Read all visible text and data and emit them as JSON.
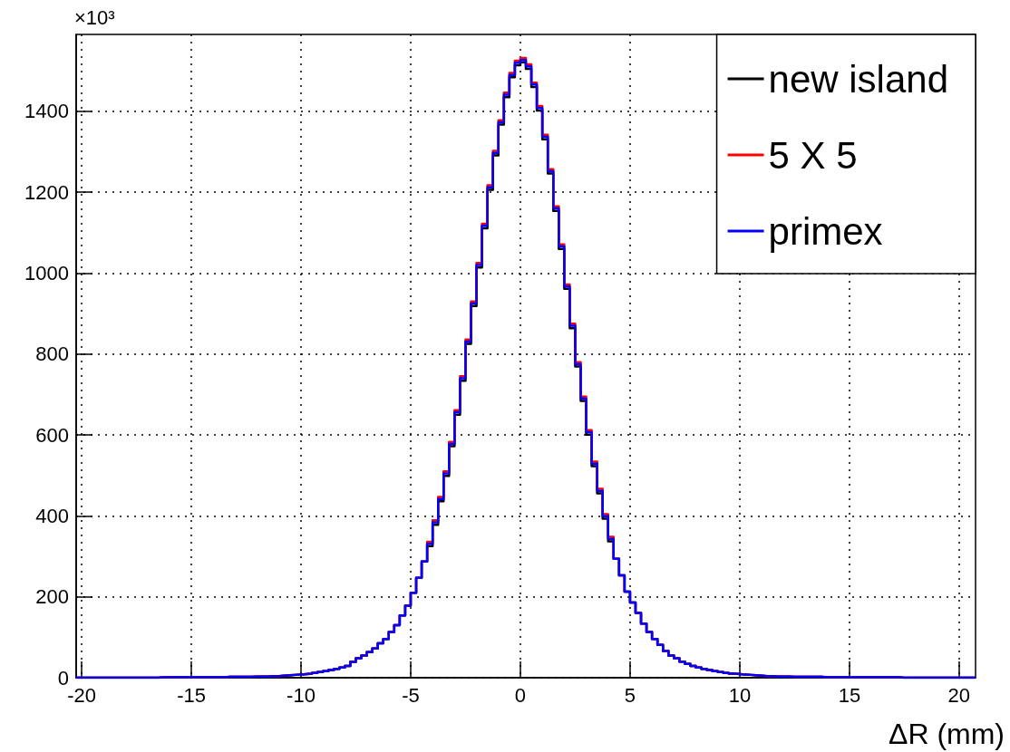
{
  "chart_data": {
    "type": "histogram",
    "xlabel": "ΔR (mm)",
    "annotations": [
      "×10³"
    ],
    "bins": [
      -20.25,
      -20,
      -19.75,
      -19.5,
      -19.25,
      -19,
      -18.75,
      -18.5,
      -18.25,
      -18,
      -17.75,
      -17.5,
      -17.25,
      -17,
      -16.75,
      -16.5,
      -16.25,
      -16,
      -15.75,
      -15.5,
      -15.25,
      -15,
      -14.75,
      -14.5,
      -14.25,
      -14,
      -13.75,
      -13.5,
      -13.25,
      -13,
      -12.75,
      -12.5,
      -12.25,
      -12,
      -11.75,
      -11.5,
      -11.25,
      -11,
      -10.75,
      -10.5,
      -10.25,
      -10,
      -9.75,
      -9.5,
      -9.25,
      -9,
      -8.75,
      -8.5,
      -8.25,
      -8,
      -7.75,
      -7.5,
      -7.25,
      -7,
      -6.75,
      -6.5,
      -6.25,
      -6,
      -5.75,
      -5.5,
      -5.25,
      -5,
      -4.75,
      -4.5,
      -4.25,
      -4,
      -3.75,
      -3.5,
      -3.25,
      -3,
      -2.75,
      -2.5,
      -2.25,
      -2,
      -1.75,
      -1.5,
      -1.25,
      -1,
      -0.75,
      -0.5,
      -0.25,
      0,
      0.25,
      0.5,
      0.75,
      1,
      1.25,
      1.5,
      1.75,
      2,
      2.25,
      2.5,
      2.75,
      3,
      3.25,
      3.5,
      3.75,
      4,
      4.25,
      4.5,
      4.75,
      5,
      5.25,
      5.5,
      5.75,
      6,
      6.25,
      6.5,
      6.75,
      7,
      7.25,
      7.5,
      7.75,
      8,
      8.25,
      8.5,
      8.75,
      9,
      9.25,
      9.5,
      9.75,
      10,
      10.25,
      10.5,
      10.75,
      11,
      11.25,
      11.5,
      11.75,
      12,
      12.25,
      12.5,
      12.75,
      13,
      13.25,
      13.5,
      13.75,
      14,
      14.25,
      14.5,
      14.75,
      15,
      15.25,
      15.5,
      15.75,
      16,
      16.25,
      16.5,
      16.75,
      17,
      17.25,
      17.5,
      17.75,
      18,
      18.25,
      18.5,
      18.75,
      19,
      19.25,
      19.5,
      19.75,
      20,
      20.25,
      20.5,
      20.75
    ],
    "series": [
      {
        "name": "new island",
        "color": "#000000",
        "values": [
          0,
          0,
          0,
          0,
          0,
          0,
          0,
          0,
          0,
          0,
          0,
          0,
          0,
          0,
          0,
          1,
          1,
          1,
          1,
          1,
          1,
          1,
          1,
          1,
          1,
          1,
          1,
          2,
          2,
          2,
          2,
          2,
          3,
          3,
          3,
          4,
          4,
          5,
          6,
          7,
          8,
          9,
          10,
          12,
          14,
          16,
          19,
          22,
          25,
          29,
          39,
          48,
          55,
          63,
          72,
          85,
          96,
          113,
          130,
          154,
          178,
          210,
          247,
          287,
          325,
          378,
          436,
          499,
          572,
          650,
          734,
          825,
          919,
          1014,
          1111,
          1206,
          1291,
          1367,
          1435,
          1484,
          1514,
          1521,
          1505,
          1460,
          1402,
          1331,
          1246,
          1154,
          1060,
          961,
          864,
          769,
          684,
          601,
          523,
          456,
          393,
          337,
          294,
          253,
          213,
          186,
          160,
          134,
          113,
          96,
          81,
          66,
          55,
          48,
          40,
          34,
          29,
          25,
          22,
          19,
          16,
          14,
          12,
          10,
          9,
          8,
          7,
          6,
          5,
          4,
          4,
          3,
          3,
          3,
          2,
          2,
          2,
          2,
          2,
          2,
          1,
          1,
          1,
          1,
          1,
          1,
          1,
          1,
          1,
          1,
          1,
          1,
          1,
          1,
          0,
          0,
          0,
          0,
          0,
          0,
          0,
          0,
          0,
          0,
          0,
          0,
          0,
          0
        ]
      },
      {
        "name": "5 X 5",
        "color": "#ff0000",
        "values": [
          0,
          0,
          0,
          0,
          0,
          0,
          0,
          0,
          0,
          0,
          0,
          0,
          0,
          0,
          0,
          1,
          1,
          1,
          1,
          1,
          1,
          1,
          1,
          1,
          1,
          1,
          1,
          2,
          2,
          2,
          2,
          2,
          3,
          3,
          3,
          4,
          4,
          5,
          6,
          7,
          8,
          9,
          10,
          12,
          14,
          16,
          19,
          22,
          25,
          29,
          39,
          48,
          55,
          63,
          72,
          85,
          96,
          113,
          130,
          154,
          178,
          210,
          247,
          287,
          336,
          389,
          447,
          510,
          583,
          661,
          745,
          836,
          930,
          1025,
          1122,
          1217,
          1302,
          1378,
          1446,
          1495,
          1525,
          1532,
          1516,
          1471,
          1413,
          1342,
          1257,
          1165,
          1071,
          972,
          875,
          780,
          695,
          612,
          534,
          467,
          404,
          348,
          294,
          253,
          213,
          186,
          160,
          134,
          113,
          96,
          81,
          66,
          55,
          48,
          40,
          34,
          29,
          25,
          22,
          19,
          16,
          14,
          12,
          10,
          9,
          8,
          7,
          6,
          5,
          4,
          4,
          3,
          3,
          3,
          2,
          2,
          2,
          2,
          2,
          2,
          1,
          1,
          1,
          1,
          1,
          1,
          1,
          1,
          1,
          1,
          1,
          1,
          1,
          1,
          0,
          0,
          0,
          0,
          0,
          0,
          0,
          0,
          0,
          0,
          0,
          0,
          0,
          0
        ]
      },
      {
        "name": "primex",
        "color": "#0000ff",
        "values": [
          0,
          0,
          0,
          0,
          0,
          0,
          0,
          0,
          0,
          0,
          0,
          0,
          0,
          0,
          0,
          1,
          1,
          1,
          1,
          1,
          1,
          1,
          1,
          1,
          1,
          1,
          1,
          2,
          2,
          2,
          2,
          2,
          3,
          3,
          3,
          4,
          4,
          5,
          6,
          7,
          8,
          9,
          10,
          12,
          14,
          16,
          19,
          22,
          25,
          29,
          39,
          48,
          55,
          63,
          72,
          85,
          96,
          113,
          130,
          154,
          178,
          210,
          247,
          287,
          331,
          384,
          442,
          505,
          578,
          656,
          740,
          831,
          925,
          1020,
          1117,
          1212,
          1297,
          1373,
          1441,
          1490,
          1520,
          1527,
          1511,
          1466,
          1408,
          1337,
          1252,
          1160,
          1066,
          967,
          870,
          775,
          690,
          607,
          529,
          462,
          399,
          343,
          294,
          253,
          213,
          186,
          160,
          134,
          113,
          96,
          81,
          66,
          55,
          48,
          40,
          34,
          29,
          25,
          22,
          19,
          16,
          14,
          12,
          10,
          9,
          8,
          7,
          6,
          5,
          4,
          4,
          3,
          3,
          3,
          2,
          2,
          2,
          2,
          2,
          2,
          1,
          1,
          1,
          1,
          1,
          1,
          1,
          1,
          1,
          1,
          1,
          1,
          1,
          1,
          0,
          0,
          0,
          0,
          0,
          0,
          0,
          0,
          0,
          0,
          0,
          0,
          0,
          0
        ]
      }
    ],
    "xlim": [
      -20.25,
      20.75
    ],
    "xticks": [
      -20,
      -15,
      -10,
      -5,
      0,
      5,
      10,
      15,
      20
    ],
    "ylim": [
      0,
      1590
    ],
    "yticks": [
      0,
      200,
      400,
      600,
      800,
      1000,
      1200,
      1400
    ],
    "grid": true,
    "legend": "top right",
    "line_style": "solid",
    "marker": "none"
  }
}
